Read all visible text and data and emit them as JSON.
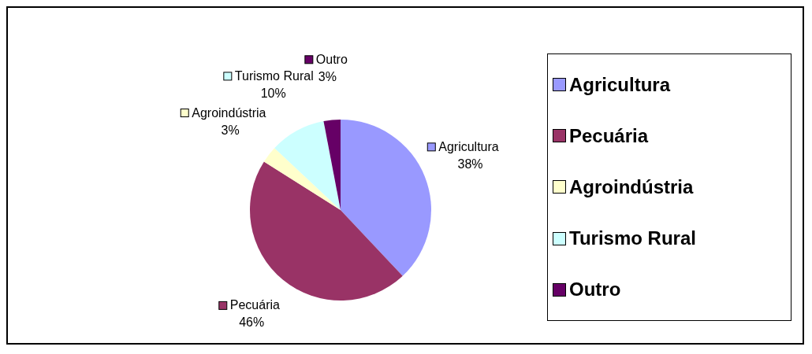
{
  "chart_data": {
    "type": "pie",
    "categories": [
      "Agricultura",
      "Pecuária",
      "Agroindústria",
      "Turismo Rural",
      "Outro"
    ],
    "values": [
      38,
      46,
      3,
      10,
      3
    ],
    "value_labels": [
      "38%",
      "46%",
      "3%",
      "10%",
      "3%"
    ],
    "colors": [
      "#9999ff",
      "#993366",
      "#ffffcc",
      "#ccffff",
      "#660066"
    ],
    "legend": "right"
  }
}
